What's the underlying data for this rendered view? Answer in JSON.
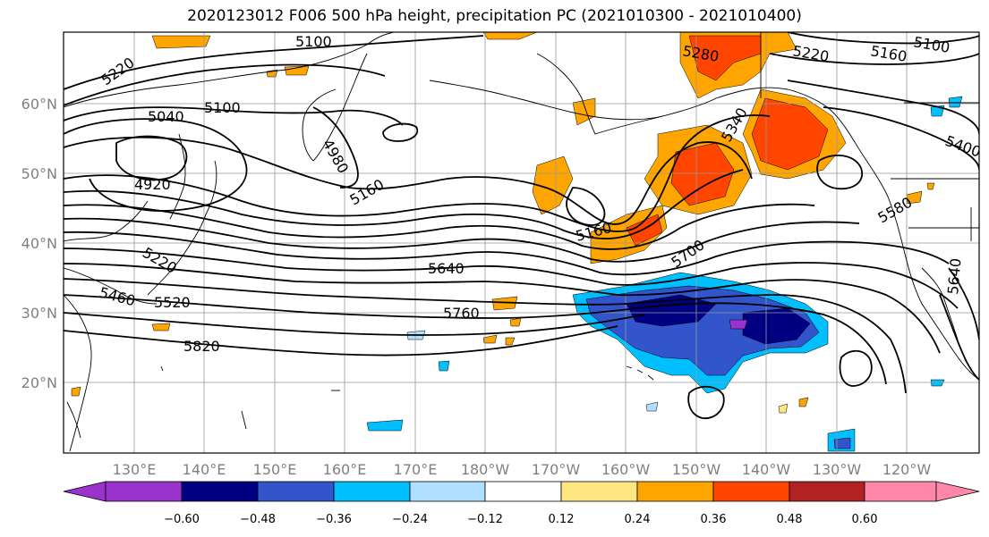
{
  "title": "2020123012 F006 500 hPa height, precipitation PC (2021010300 - 2021010400)",
  "lat_labels": [
    "60°N",
    "50°N",
    "40°N",
    "30°N",
    "20°N"
  ],
  "lon_labels": [
    "130°E",
    "140°E",
    "150°E",
    "160°E",
    "170°E",
    "180°W",
    "170°W",
    "160°W",
    "150°W",
    "140°W",
    "130°W",
    "120°W"
  ],
  "contour_labels": [
    "5100",
    "5220",
    "5040",
    "5100",
    "4980",
    "4920",
    "5160",
    "5160",
    "5280",
    "5220",
    "5160",
    "5100",
    "5340",
    "5400",
    "5580",
    "5220",
    "5460",
    "5520",
    "5640",
    "5700",
    "5760",
    "5820",
    "5640"
  ],
  "colorbar": {
    "colors": [
      "#9933cc",
      "#000080",
      "#3355cc",
      "#00bfff",
      "#b0e0ff",
      "#ffffff",
      "#ffe680",
      "#ffa500",
      "#ff4500",
      "#b22222",
      "#ff88aa"
    ],
    "ticks": [
      "−0.60",
      "−0.48",
      "−0.36",
      "−0.24",
      "−0.12",
      "0.12",
      "0.24",
      "0.36",
      "0.48",
      "0.60"
    ]
  },
  "colors": {
    "land_outline": "#000000",
    "grid": "#999999",
    "contour": "#000000"
  }
}
